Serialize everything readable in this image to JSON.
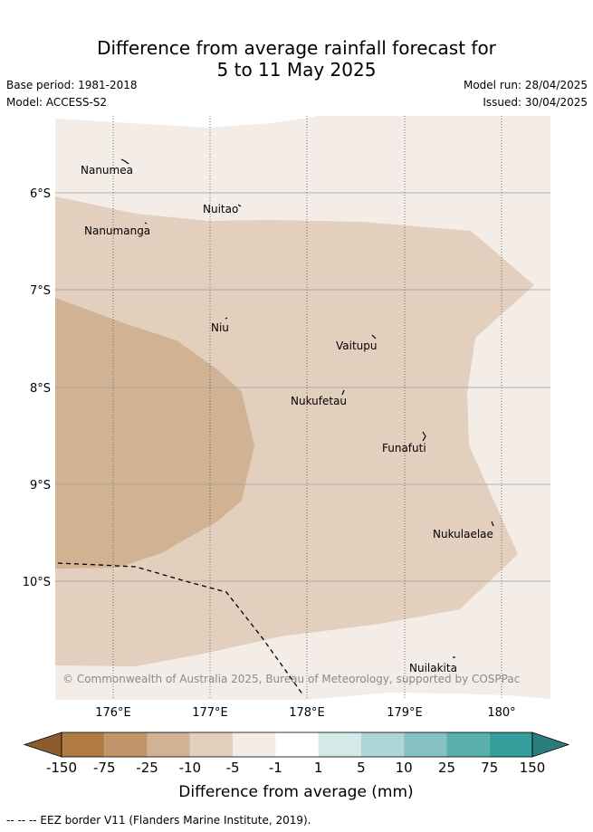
{
  "title": {
    "line1": "Difference from average rainfall forecast for",
    "line2": "5 to 11 May 2025"
  },
  "meta": {
    "base_period": "Base period: 1981-2018",
    "model": "Model: ACCESS-S2",
    "model_run": "Model run: 28/04/2025",
    "issued": "Issued: 30/04/2025"
  },
  "map": {
    "lat_labels": [
      "6°S",
      "7°S",
      "8°S",
      "9°S",
      "10°S"
    ],
    "lon_labels": [
      "176°E",
      "177°E",
      "178°E",
      "179°E",
      "180°"
    ],
    "islands": [
      "Nanumea",
      "Nuitao",
      "Nanumanga",
      "Niu",
      "Vaitupu",
      "Nukufetau",
      "Funafuti",
      "Nukulaelae",
      "Nuilakita"
    ],
    "copyright": "© Commonwealth of Australia 2025, Bureau of Meteorology, supported by COSPPac",
    "colors": {
      "band_-1_to_-5": "#f4ece6",
      "band_-5_to_-10": "#e3cfbe",
      "band_-10_to_-25": "#d1b394"
    }
  },
  "legend": {
    "title": "Difference from average (mm)",
    "tick_labels": [
      "-150",
      "-75",
      "-25",
      "-10",
      "-5",
      "-1",
      "1",
      "5",
      "10",
      "25",
      "75",
      "150"
    ],
    "colors": [
      "#8c5a2c",
      "#b07a44",
      "#c19569",
      "#d1b394",
      "#e3cfbe",
      "#f4ece6",
      "#ffffff",
      "#d4eae9",
      "#add7d6",
      "#85c2c1",
      "#5bb0ae",
      "#339e9c",
      "#2b7d7d"
    ]
  },
  "footnote": "-- -- -- EEZ border V11 (Flanders Marine Institute, 2019)."
}
